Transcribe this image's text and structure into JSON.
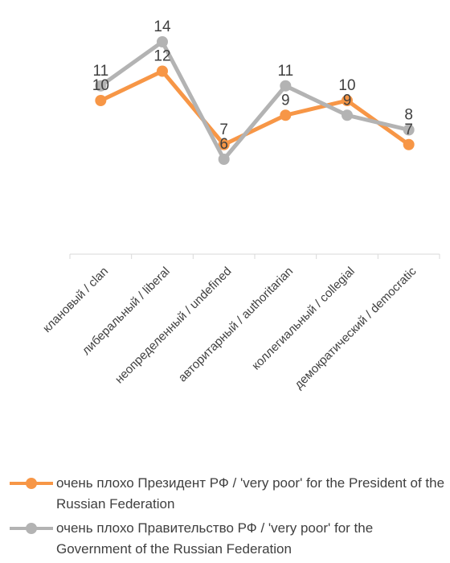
{
  "chart_data": {
    "type": "line",
    "categories": [
      "клановый / clan",
      "либеральный / liberal",
      "неопределенный / undefined",
      "авторитарный / authoritarian",
      "коллегиальный / collegial",
      "демократический / democratic"
    ],
    "series": [
      {
        "name": "очень плохо Президент РФ / 'very poor' for the President of the Russian Federation",
        "color": "#F79646",
        "values": [
          10,
          12,
          7,
          9,
          10,
          7
        ],
        "data_labels": [
          "10",
          "12",
          "7",
          "9",
          "10",
          "7"
        ]
      },
      {
        "name": "очень плохо   Правительство РФ / 'very poor' for the Government of the Russian Federation",
        "color": "#B3B3B3",
        "values": [
          11,
          14,
          6,
          11,
          9,
          8
        ],
        "data_labels": [
          "11",
          "14",
          "6",
          "11",
          "9",
          "8"
        ]
      }
    ],
    "legend_position": "bottom",
    "grid": false
  }
}
